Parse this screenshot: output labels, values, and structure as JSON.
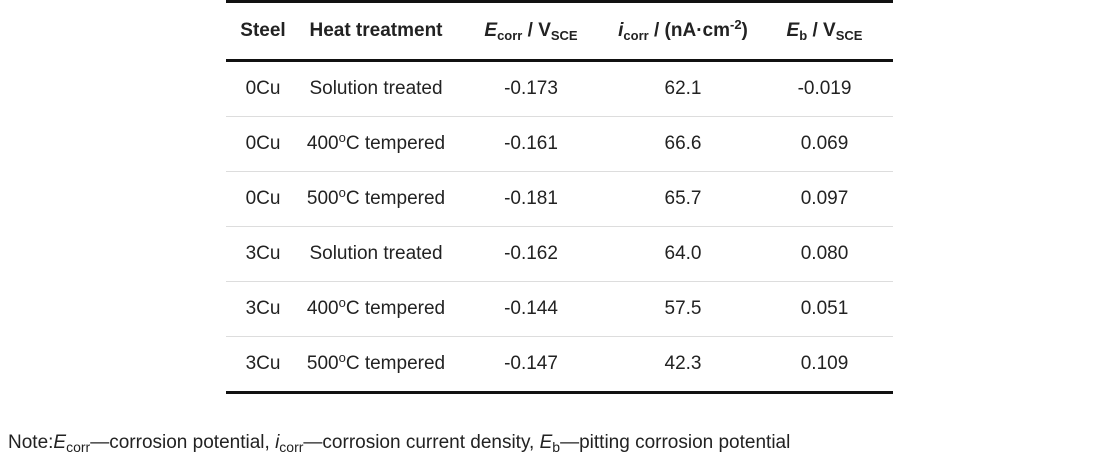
{
  "table": {
    "headers": {
      "steel": "Steel",
      "heat_treatment": "Heat treatment",
      "ecorr": {
        "sym": "E",
        "sub": "corr",
        "rest": " / V",
        "unit_sub": "SCE"
      },
      "icorr": {
        "sym": "i",
        "sub": "corr",
        "rest": " / (nA·cm",
        "sup": "-2",
        "close": ")"
      },
      "eb": {
        "sym": "E",
        "sub": "b",
        "rest": " / V",
        "unit_sub": "SCE"
      }
    },
    "rows": [
      {
        "steel": "0Cu",
        "treat_pre": "Solution treated",
        "treat_sup": "",
        "treat_post": "",
        "ecorr": "-0.173",
        "icorr": "62.1",
        "eb": "-0.019"
      },
      {
        "steel": "0Cu",
        "treat_pre": "400",
        "treat_sup": "o",
        "treat_post": "C tempered",
        "ecorr": "-0.161",
        "icorr": "66.6",
        "eb": "0.069"
      },
      {
        "steel": "0Cu",
        "treat_pre": "500",
        "treat_sup": "o",
        "treat_post": "C tempered",
        "ecorr": "-0.181",
        "icorr": "65.7",
        "eb": "0.097"
      },
      {
        "steel": "3Cu",
        "treat_pre": "Solution treated",
        "treat_sup": "",
        "treat_post": "",
        "ecorr": "-0.162",
        "icorr": "64.0",
        "eb": "0.080"
      },
      {
        "steel": "3Cu",
        "treat_pre": "400",
        "treat_sup": "o",
        "treat_post": "C tempered",
        "ecorr": "-0.144",
        "icorr": "57.5",
        "eb": "0.051"
      },
      {
        "steel": "3Cu",
        "treat_pre": "500",
        "treat_sup": "o",
        "treat_post": "C tempered",
        "ecorr": "-0.147",
        "icorr": "42.3",
        "eb": "0.109"
      }
    ]
  },
  "note": {
    "prefix": "Note:",
    "e_sym": "E",
    "e_sub": "corr",
    "e_desc": "—corrosion potential, ",
    "i_sym": "i",
    "i_sub": "corr",
    "i_desc": "—corrosion current density, ",
    "eb_sym": "E",
    "eb_sub": "b",
    "eb_desc": "—pitting corrosion potential"
  }
}
